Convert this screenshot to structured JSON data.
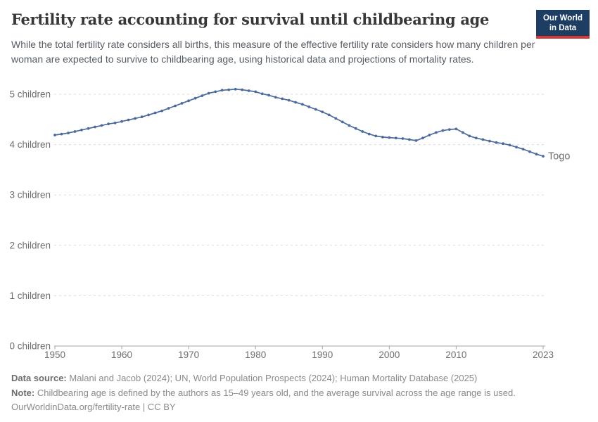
{
  "header": {
    "title": "Fertility rate accounting for survival until childbearing age",
    "subtitle": "While the total fertility rate considers all births, this measure of the effective fertility rate considers how many children per woman are expected to survive to childbearing age, using historical data and projections of mortality rates.",
    "logo": {
      "line1": "Our World",
      "line2": "in Data",
      "bg_color": "#1d3d63",
      "accent_color": "#cf3b3b"
    }
  },
  "chart_data": {
    "type": "line",
    "title": "Fertility rate accounting for survival until childbearing age",
    "xlabel": "",
    "ylabel": "",
    "xlim": [
      1950,
      2023
    ],
    "ylim": [
      0,
      5.6
    ],
    "grid": "horizontal dashed",
    "grid_color": "#dcdcdc",
    "axis_color": "#a5a5a5",
    "x_ticks": [
      {
        "value": 1950,
        "label": "1950"
      },
      {
        "value": 1960,
        "label": "1960"
      },
      {
        "value": 1970,
        "label": "1970"
      },
      {
        "value": 1980,
        "label": "1980"
      },
      {
        "value": 1990,
        "label": "1990"
      },
      {
        "value": 2000,
        "label": "2000"
      },
      {
        "value": 2010,
        "label": "2010"
      },
      {
        "value": 2023,
        "label": "2023"
      }
    ],
    "y_ticks": [
      {
        "value": 0,
        "label": "0 children"
      },
      {
        "value": 1,
        "label": "1 children"
      },
      {
        "value": 2,
        "label": "2 children"
      },
      {
        "value": 3,
        "label": "3 children"
      },
      {
        "value": 4,
        "label": "4 children"
      },
      {
        "value": 5,
        "label": "5 children"
      }
    ],
    "series": [
      {
        "name": "Togo",
        "color": "#4c6a9c",
        "markers": true,
        "x": [
          1950,
          1951,
          1952,
          1953,
          1954,
          1955,
          1956,
          1957,
          1958,
          1959,
          1960,
          1961,
          1962,
          1963,
          1964,
          1965,
          1966,
          1967,
          1968,
          1969,
          1970,
          1971,
          1972,
          1973,
          1974,
          1975,
          1976,
          1977,
          1978,
          1979,
          1980,
          1981,
          1982,
          1983,
          1984,
          1985,
          1986,
          1987,
          1988,
          1989,
          1990,
          1991,
          1992,
          1993,
          1994,
          1995,
          1996,
          1997,
          1998,
          1999,
          2000,
          2001,
          2002,
          2003,
          2004,
          2005,
          2006,
          2007,
          2008,
          2009,
          2010,
          2011,
          2012,
          2013,
          2014,
          2015,
          2016,
          2017,
          2018,
          2019,
          2020,
          2021,
          2022,
          2023
        ],
        "values": [
          4.19,
          4.21,
          4.23,
          4.26,
          4.29,
          4.32,
          4.35,
          4.38,
          4.41,
          4.43,
          4.46,
          4.49,
          4.52,
          4.55,
          4.59,
          4.63,
          4.67,
          4.72,
          4.77,
          4.82,
          4.87,
          4.92,
          4.97,
          5.02,
          5.05,
          5.08,
          5.09,
          5.1,
          5.09,
          5.07,
          5.05,
          5.01,
          4.98,
          4.94,
          4.91,
          4.88,
          4.84,
          4.8,
          4.75,
          4.7,
          4.65,
          4.59,
          4.52,
          4.45,
          4.38,
          4.32,
          4.26,
          4.21,
          4.17,
          4.15,
          4.14,
          4.13,
          4.12,
          4.1,
          4.08,
          4.13,
          4.19,
          4.24,
          4.28,
          4.3,
          4.31,
          4.24,
          4.17,
          4.13,
          4.1,
          4.07,
          4.04,
          4.02,
          3.99,
          3.95,
          3.91,
          3.86,
          3.81,
          3.77
        ]
      }
    ],
    "end_label": "Togo",
    "legend_position": "end-of-line"
  },
  "footer": {
    "data_source_label": "Data source:",
    "data_source": " Malani and Jacob (2024); UN, World Population Prospects (2024); Human Mortality Database (2025)",
    "note_label": "Note:",
    "note": " Childbearing age is defined by the authors as 15–49 years old, and the average survival across the age range is used.",
    "license": "OurWorldinData.org/fertility-rate | CC BY"
  }
}
